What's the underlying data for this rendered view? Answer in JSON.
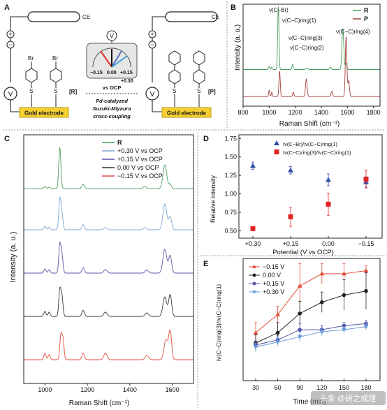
{
  "panel_a": {
    "letter": "A",
    "ce_label": "CE",
    "plus": "+",
    "minus": "−",
    "v_label": "V",
    "br": "Br",
    "s": "S",
    "r_tag": "[R]",
    "p_tag": "[P]",
    "electrode": "Gold electrode",
    "meter_v": "V",
    "meter_vals": [
      "−0.15",
      "0.00",
      "+0.15",
      "+0.30"
    ],
    "vs_ocp": "vs OCP",
    "reaction_lines": [
      "Pd-catalyzed",
      "Suzuki-Miyaura",
      "cross-coupling"
    ],
    "colors": {
      "neg": "#e0302a",
      "zero": "#111111",
      "pos1": "#5a6fc2",
      "pos2": "#3aa0d8",
      "electrode": "#f5d033"
    }
  },
  "panel_b": {
    "letter": "B",
    "ylabel": "Intensity (a. u.)",
    "xlabel": "Raman Shift (cm⁻¹)",
    "legend": [
      {
        "name": "R",
        "color": "#4a9e5c"
      },
      {
        "name": "P",
        "color": "#a0413a"
      }
    ],
    "annotations": [
      {
        "label": "ν(C−Br)"
      },
      {
        "label": "ν(C−C)ring(1)"
      },
      {
        "label": "ν(C−C)ring(3)"
      },
      {
        "label": "ν(C−C)ring(4)"
      },
      {
        "label": "ν(C−C)ring(2)"
      }
    ]
  },
  "panel_c": {
    "letter": "C",
    "ylabel": "Intensity (a. u.)",
    "xlabel": "Raman Shift (cm⁻¹)",
    "legend": [
      {
        "name": "R",
        "color": "#4a9e5c"
      },
      {
        "name": "+0.30 V vs OCP",
        "color": "#7fa6d4"
      },
      {
        "name": "+0.15 V vs OCP",
        "color": "#5656a6"
      },
      {
        "name": "0.00 V vs OCP",
        "color": "#333333"
      },
      {
        "name": "−0.15 V vs OCP",
        "color": "#e0503c"
      }
    ]
  },
  "panel_d": {
    "letter": "D",
    "ylabel": "Relative intensity",
    "xlabel": "Potential (V vs OCP)",
    "legend": [
      "Iν(C−Br)/Iν(C−C)ring(1)",
      "Iν(C−C)ring(3)/Iν(C−C)ring(1)"
    ]
  },
  "panel_e": {
    "letter": "E",
    "ylabel": "Iν(C−C)ring(3)/Iν(C−C)ring(1)",
    "xlabel": "Time (min)",
    "legend": [
      "−0.15 V",
      "0.00 V",
      "+0.15 V",
      "+0.30 V"
    ]
  },
  "watermark": "头条 @研之成理",
  "chart_data": [
    {
      "panel": "B",
      "type": "line",
      "xlim": [
        800,
        1850
      ],
      "xticks": [
        800,
        1000,
        1200,
        1400,
        1600,
        1800
      ],
      "grid": false,
      "legend_position": "top-right",
      "series": [
        {
          "name": "R",
          "color": "#4a9e5c",
          "offset": 0.42,
          "baseline": 0.03,
          "peaks": [
            [
              1000,
              0.05,
              4
            ],
            [
              1020,
              0.04,
              4
            ],
            [
              1070,
              1.0,
              5
            ],
            [
              1180,
              0.08,
              5
            ],
            [
              1290,
              0.02,
              8
            ],
            [
              1470,
              0.04,
              6
            ],
            [
              1565,
              0.65,
              7
            ],
            [
              1590,
              0.1,
              6
            ]
          ]
        },
        {
          "name": "P",
          "color": "#a0413a",
          "offset": 0.0,
          "baseline": 0.02,
          "peaks": [
            [
              1000,
              0.1,
              4
            ],
            [
              1020,
              0.07,
              4
            ],
            [
              1080,
              0.4,
              5
            ],
            [
              1185,
              0.07,
              5
            ],
            [
              1285,
              0.28,
              6
            ],
            [
              1480,
              0.08,
              6
            ],
            [
              1590,
              0.95,
              6
            ],
            [
              1610,
              0.25,
              6
            ]
          ]
        }
      ]
    },
    {
      "panel": "C",
      "type": "line",
      "xlim": [
        900,
        1700
      ],
      "xticks": [
        1000,
        1200,
        1400,
        1600
      ],
      "grid": false,
      "legend_position": "top-right",
      "series": [
        {
          "name": "R",
          "color": "#4a9e5c",
          "offset": 4.0,
          "baseline": 0.03,
          "peaks": [
            [
              1000,
              0.05,
              5
            ],
            [
              1020,
              0.04,
              5
            ],
            [
              1070,
              0.95,
              5
            ],
            [
              1180,
              0.1,
              6
            ],
            [
              1470,
              0.05,
              8
            ],
            [
              1565,
              0.55,
              9
            ],
            [
              1590,
              0.1,
              6
            ]
          ]
        },
        {
          "name": "+0.30 V vs OCP",
          "color": "#7fa6d4",
          "offset": 3.0,
          "baseline": 0.08,
          "peaks": [
            [
              1000,
              0.08,
              5
            ],
            [
              1020,
              0.06,
              5
            ],
            [
              1070,
              0.7,
              5
            ],
            [
              1080,
              0.35,
              5
            ],
            [
              1180,
              0.12,
              6
            ],
            [
              1285,
              0.05,
              8
            ],
            [
              1470,
              0.05,
              8
            ],
            [
              1565,
              0.6,
              9
            ],
            [
              1590,
              0.3,
              7
            ]
          ]
        },
        {
          "name": "+0.15 V vs OCP",
          "color": "#5656a6",
          "offset": 2.0,
          "baseline": 0.08,
          "peaks": [
            [
              1000,
              0.1,
              5
            ],
            [
              1020,
              0.08,
              5
            ],
            [
              1070,
              0.65,
              5
            ],
            [
              1080,
              0.4,
              5
            ],
            [
              1180,
              0.13,
              6
            ],
            [
              1285,
              0.08,
              8
            ],
            [
              1480,
              0.07,
              8
            ],
            [
              1565,
              0.55,
              9
            ],
            [
              1590,
              0.4,
              7
            ]
          ]
        },
        {
          "name": "0.00 V vs OCP",
          "color": "#333333",
          "offset": 1.0,
          "baseline": 0.08,
          "peaks": [
            [
              1000,
              0.12,
              5
            ],
            [
              1020,
              0.1,
              5
            ],
            [
              1070,
              0.6,
              5
            ],
            [
              1080,
              0.45,
              5
            ],
            [
              1180,
              0.14,
              6
            ],
            [
              1285,
              0.1,
              8
            ],
            [
              1480,
              0.08,
              8
            ],
            [
              1565,
              0.45,
              9
            ],
            [
              1590,
              0.5,
              7
            ]
          ]
        },
        {
          "name": "−0.15 V vs OCP",
          "color": "#e0503c",
          "offset": 0.0,
          "baseline": 0.08,
          "peaks": [
            [
              1000,
              0.15,
              5
            ],
            [
              1020,
              0.12,
              5
            ],
            [
              1075,
              0.55,
              5
            ],
            [
              1085,
              0.45,
              5
            ],
            [
              1180,
              0.15,
              6
            ],
            [
              1285,
              0.15,
              8
            ],
            [
              1480,
              0.1,
              8
            ],
            [
              1570,
              0.45,
              9
            ],
            [
              1590,
              0.65,
              7
            ]
          ]
        }
      ]
    },
    {
      "panel": "D",
      "type": "scatter",
      "x_categories": [
        "+0.30",
        "+0.15",
        "0.00",
        "−0.15"
      ],
      "ylim": [
        0.4,
        1.8
      ],
      "yticks": [
        0.5,
        0.75,
        1.0,
        1.25,
        1.5,
        1.75
      ],
      "grid": false,
      "legend_position": "top",
      "series": [
        {
          "marker": "triangle",
          "color": "#2f4ea6",
          "values": [
            1.38,
            1.32,
            1.19,
            1.16
          ],
          "errors": [
            0.05,
            0.05,
            0.08,
            0.07
          ]
        },
        {
          "marker": "square",
          "color": "#e02424",
          "values": [
            0.53,
            0.69,
            0.86,
            1.2
          ],
          "errors": [
            0.03,
            0.13,
            0.15,
            0.12
          ]
        }
      ]
    },
    {
      "panel": "E",
      "type": "line",
      "x": [
        30,
        60,
        90,
        120,
        150,
        180
      ],
      "ylim": [
        0.0,
        1.2
      ],
      "grid": false,
      "legend_position": "top-left",
      "series": [
        {
          "name": "−0.15 V",
          "color": "#e0503c",
          "marker": "triangle",
          "values": [
            0.47,
            0.65,
            0.93,
            1.05,
            1.05,
            1.08
          ],
          "errors": [
            0.1,
            0.08,
            0.22,
            0.1,
            0.1,
            0.05
          ]
        },
        {
          "name": "0.00 V",
          "color": "#222222",
          "marker": "circle",
          "values": [
            0.37,
            0.47,
            0.66,
            0.77,
            0.84,
            0.88
          ],
          "errors": [
            0.08,
            0.1,
            0.12,
            0.1,
            0.15,
            0.18
          ]
        },
        {
          "name": "+0.15 V",
          "color": "#5656a6",
          "marker": "circle",
          "values": [
            0.35,
            0.4,
            0.5,
            0.5,
            0.54,
            0.56
          ],
          "errors": [
            0.04,
            0.04,
            0.06,
            0.04,
            0.03,
            0.03
          ]
        },
        {
          "name": "+0.30 V",
          "color": "#6a9ad8",
          "marker": "triangle-down",
          "values": [
            0.33,
            0.38,
            0.43,
            0.48,
            0.5,
            0.53
          ],
          "errors": [
            0.04,
            0.04,
            0.05,
            0.04,
            0.03,
            0.03
          ]
        }
      ]
    }
  ]
}
